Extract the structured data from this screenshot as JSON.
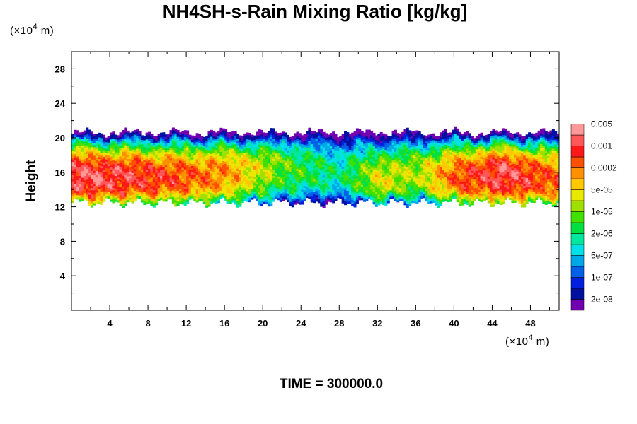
{
  "chart_data": {
    "type": "heatmap",
    "title": "NH4SH-s-Rain Mixing Ratio [kg/kg]",
    "xlabel": "",
    "ylabel": "Height",
    "x_unit": {
      "prefix": "(×10",
      "exp": "4",
      "suffix": " m)"
    },
    "y_unit": {
      "prefix": "(×10",
      "exp": "4",
      "suffix": " m)"
    },
    "xlim": [
      0,
      51
    ],
    "ylim": [
      0,
      30
    ],
    "xticks": [
      "4",
      "8",
      "12",
      "16",
      "20",
      "24",
      "28",
      "32",
      "36",
      "40",
      "44",
      "48"
    ],
    "yticks": [
      "4",
      "8",
      "12",
      "16",
      "20",
      "24",
      "28"
    ],
    "footer": "TIME = 300000.0",
    "colorbar": {
      "colors": [
        "#7000b0",
        "#0010a0",
        "#0020e0",
        "#0060e8",
        "#00a8e8",
        "#00e0e8",
        "#00e8a0",
        "#00e040",
        "#40e000",
        "#a0e000",
        "#e8e800",
        "#ffc800",
        "#ff9000",
        "#ff5000",
        "#ff1818",
        "#ff5858",
        "#ff9898"
      ],
      "labels": [
        "2e-08",
        "1e-07",
        "5e-07",
        "2e-06",
        "1e-05",
        "5e-05",
        "0.0002",
        "0.001",
        "0.005"
      ]
    },
    "field": {
      "cloud_bottom_km": 12.5,
      "cloud_top_km": 20.5,
      "core_levels": [
        {
          "x": 2,
          "y": 15.5,
          "level": 15
        },
        {
          "x": 8,
          "y": 15.5,
          "level": 14
        },
        {
          "x": 12,
          "y": 15.5,
          "level": 13
        },
        {
          "x": 16,
          "y": 16,
          "level": 12
        },
        {
          "x": 22,
          "y": 17,
          "level": 8
        },
        {
          "x": 28,
          "y": 16,
          "level": 6
        },
        {
          "x": 32,
          "y": 15,
          "level": 10
        },
        {
          "x": 36,
          "y": 16,
          "level": 9
        },
        {
          "x": 40,
          "y": 15.5,
          "level": 13
        },
        {
          "x": 45,
          "y": 16,
          "level": 15
        },
        {
          "x": 50,
          "y": 15,
          "level": 13
        }
      ]
    }
  }
}
